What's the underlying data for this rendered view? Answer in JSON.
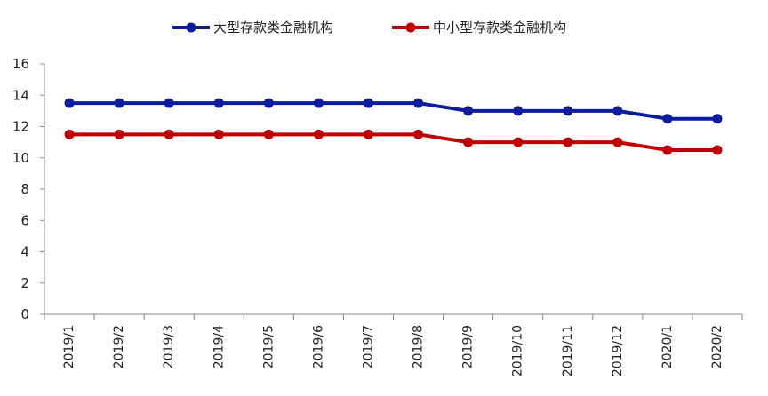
{
  "chart_data": {
    "type": "line",
    "title": "",
    "xlabel": "",
    "ylabel": "",
    "categories": [
      "2019/1",
      "2019/2",
      "2019/3",
      "2019/4",
      "2019/5",
      "2019/6",
      "2019/7",
      "2019/8",
      "2019/9",
      "2019/10",
      "2019/11",
      "2019/12",
      "2020/1",
      "2020/2"
    ],
    "ylim": [
      0,
      16
    ],
    "yticks": [
      0,
      2,
      4,
      6,
      8,
      10,
      12,
      14,
      16
    ],
    "grid": false,
    "legend_position": "top",
    "series": [
      {
        "name": "大型存款类金融机构",
        "color": "#0B1C9C",
        "values": [
          13.5,
          13.5,
          13.5,
          13.5,
          13.5,
          13.5,
          13.5,
          13.5,
          13.0,
          13.0,
          13.0,
          13.0,
          12.5,
          12.5
        ]
      },
      {
        "name": "中小型存款类金融机构",
        "color": "#C00000",
        "values": [
          11.5,
          11.5,
          11.5,
          11.5,
          11.5,
          11.5,
          11.5,
          11.5,
          11.0,
          11.0,
          11.0,
          11.0,
          10.5,
          10.5
        ]
      }
    ]
  }
}
